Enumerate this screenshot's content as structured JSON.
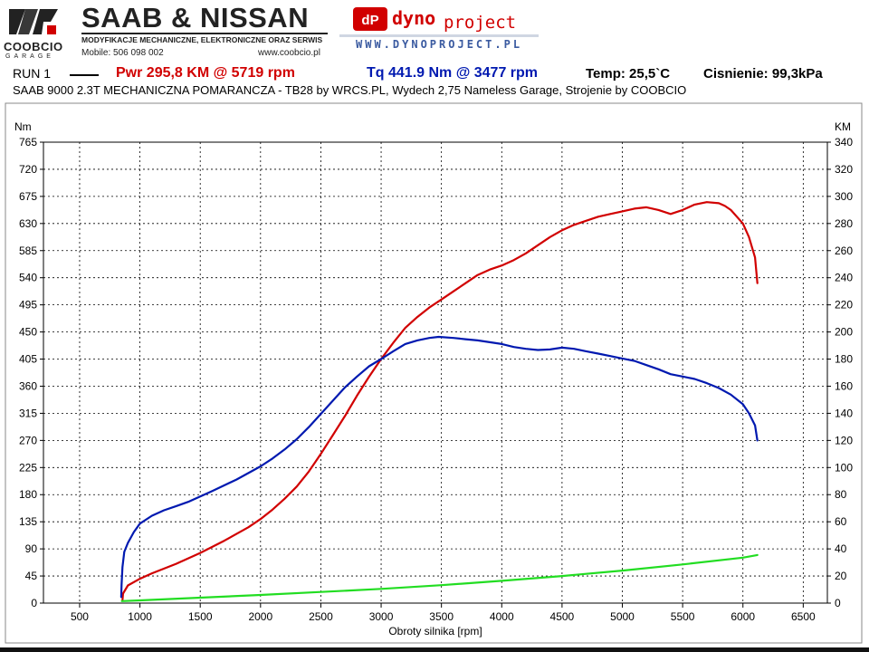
{
  "header": {
    "logo_name": "COOBCIO",
    "logo_sub": "GARAGE",
    "brand_title": "SAAB & NISSAN",
    "brand_sub": "MODYFIKACJE MECHANICZNE, ELEKTRONICZNE ORAZ SERWIS",
    "mobile": "Mobile: 506 098 002",
    "website": "www.coobcio.pl",
    "dyno_word1": "dyno",
    "dyno_word2": "project",
    "dyno_www": "WWW.DYNOPROJECT.PL"
  },
  "run": {
    "label": "RUN 1",
    "power": "Pwr  295,8 KM @ 5719 rpm",
    "torque": "Tq 441.9 Nm @ 3477 rpm",
    "temp": "Temp: 25,5`C",
    "pressure": "Cisnienie: 99,3kPa"
  },
  "description": "SAAB 9000 2.3T MECHANICZNA POMARANCZA - TB28 by WRCS.PL, Wydech 2,75 Nameless Garage, Strojenie by COOBCIO",
  "colors": {
    "power": "#d10000",
    "torque": "#0019b0",
    "boost": "#22dd22",
    "grid": "#000000"
  },
  "chart_data": {
    "type": "line",
    "xlabel": "Obroty silnika [rpm]",
    "ylabel_left": "Nm",
    "ylabel_right": "KM",
    "xlim": [
      200,
      6700
    ],
    "xticks": [
      500,
      1000,
      1500,
      2000,
      2500,
      3000,
      3500,
      4000,
      4500,
      5000,
      5500,
      6000,
      6500
    ],
    "ylim_left": [
      0,
      765
    ],
    "yticks_left": [
      0,
      45,
      90,
      135,
      180,
      225,
      270,
      315,
      360,
      405,
      450,
      495,
      540,
      585,
      630,
      675,
      720,
      765
    ],
    "ylim_right": [
      0,
      340
    ],
    "yticks_right": [
      0,
      20,
      40,
      60,
      80,
      100,
      120,
      140,
      160,
      180,
      200,
      220,
      240,
      260,
      280,
      300,
      320,
      340
    ],
    "grid": true,
    "series": [
      {
        "axis": "right",
        "color": "#d10000",
        "x": [
          855,
          860,
          900,
          1000,
          1100,
          1300,
          1500,
          1700,
          1900,
          2000,
          2100,
          2200,
          2300,
          2400,
          2500,
          2600,
          2700,
          2800,
          2900,
          3000,
          3100,
          3200,
          3300,
          3400,
          3500,
          3600,
          3700,
          3800,
          3900,
          4000,
          4100,
          4200,
          4300,
          4400,
          4500,
          4600,
          4700,
          4800,
          4900,
          5000,
          5100,
          5200,
          5300,
          5400,
          5500,
          5600,
          5700,
          5800,
          5850,
          5900,
          6000,
          6050,
          6100,
          6120
        ],
        "y": [
          2,
          7,
          13,
          18,
          22,
          29,
          37,
          46,
          56,
          62,
          69,
          77,
          86,
          97,
          110,
          124,
          138,
          153,
          167,
          180,
          192,
          203,
          211,
          218,
          224,
          230,
          236,
          242,
          246,
          249,
          253,
          258,
          264,
          270,
          275,
          279,
          282,
          285,
          287,
          289,
          291,
          292,
          290,
          287,
          290,
          294,
          295.8,
          295,
          293,
          290,
          280,
          270,
          255,
          236
        ]
      },
      {
        "axis": "left",
        "color": "#0019b0",
        "x": [
          845,
          848,
          855,
          870,
          900,
          950,
          1000,
          1100,
          1200,
          1300,
          1400,
          1500,
          1600,
          1800,
          2000,
          2100,
          2200,
          2300,
          2400,
          2500,
          2600,
          2700,
          2800,
          2900,
          3000,
          3100,
          3200,
          3300,
          3400,
          3477,
          3600,
          3700,
          3800,
          3900,
          4000,
          4100,
          4200,
          4300,
          4400,
          4500,
          4600,
          4700,
          4800,
          4900,
          5000,
          5100,
          5200,
          5300,
          5400,
          5500,
          5600,
          5700,
          5800,
          5900,
          6000,
          6050,
          6100,
          6120
        ],
        "y": [
          10,
          30,
          60,
          85,
          100,
          118,
          132,
          145,
          154,
          161,
          168,
          177,
          186,
          205,
          227,
          240,
          255,
          272,
          292,
          314,
          336,
          358,
          376,
          393,
          405,
          418,
          430,
          436,
          440,
          441.9,
          440,
          438,
          436,
          433,
          430,
          425,
          422,
          420,
          421,
          424,
          422,
          418,
          414,
          410,
          406,
          402,
          395,
          388,
          380,
          376,
          372,
          365,
          357,
          346,
          330,
          315,
          295,
          270
        ]
      },
      {
        "axis": "right",
        "color": "#22dd22",
        "x": [
          850,
          1000,
          1500,
          2000,
          2500,
          3000,
          3500,
          4000,
          4500,
          5000,
          5500,
          6000,
          6120
        ],
        "y": [
          1.5,
          2.0,
          4.0,
          6.0,
          8.2,
          10.5,
          13.2,
          16.4,
          20.0,
          24.0,
          28.5,
          33.5,
          35.5
        ]
      }
    ]
  }
}
